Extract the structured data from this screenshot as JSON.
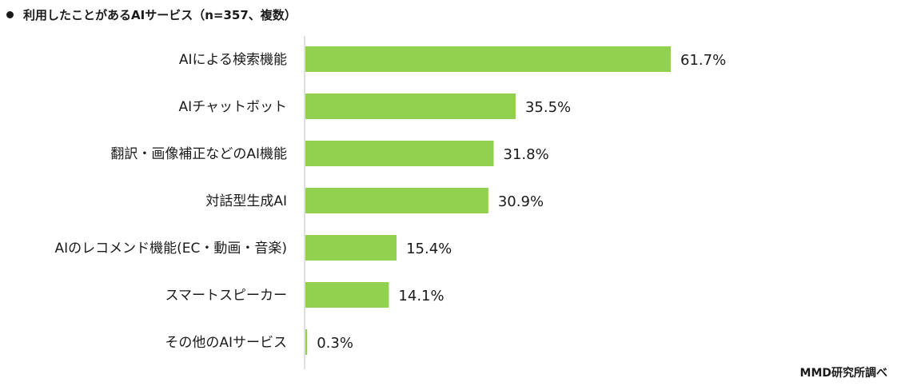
{
  "title": "利用したことがあるAIサービス（n=357、複数）",
  "source": "MMD研究所調べ",
  "colors": {
    "bar": "#92d050",
    "axis": "#bfbfbf",
    "text": "#1a1a1a"
  },
  "chart_data": {
    "type": "bar",
    "orientation": "horizontal",
    "categories": [
      "AIによる検索機能",
      "AIチャットボット",
      "翻訳・画像補正などのAI機能",
      "対話型生成AI",
      "AIのレコメンド機能(EC・動画・音楽)",
      "スマートスピーカー",
      "その他のAIサービス"
    ],
    "values": [
      61.7,
      35.5,
      31.8,
      30.9,
      15.4,
      14.1,
      0.3
    ],
    "value_labels": [
      "61.7%",
      "35.5%",
      "31.8%",
      "30.9%",
      "15.4%",
      "14.1%",
      "0.3%"
    ],
    "unit": "%",
    "xlim": [
      0,
      70
    ],
    "grid": false,
    "legend": "none"
  }
}
